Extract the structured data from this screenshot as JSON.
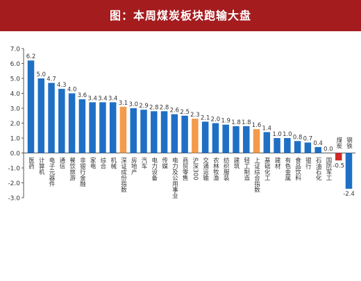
{
  "header": {
    "title": "图：本周煤炭板块跑输大盘"
  },
  "colors": {
    "title_bar": "#a51c1f",
    "bar_default": "#1f6fc5",
    "bar_highlight": "#f39a4b",
    "bar_negative_highlight": "#d02a27",
    "axis": "#555555",
    "text": "#333333"
  },
  "chart_data": {
    "type": "bar",
    "title": "图：本周煤炭板块跑输大盘",
    "xlabel": "",
    "ylabel": "",
    "ylim": [
      -3.0,
      7.0
    ],
    "yticks": [
      "7.0",
      "6.0",
      "5.0",
      "4.0",
      "3.0",
      "2.0",
      "1.0",
      "0.0",
      "-1.0",
      "-2.0",
      "-3.0"
    ],
    "grid": false,
    "categories": [
      "医药",
      "计算机",
      "电子元器件",
      "通信",
      "餐饮旅游",
      "非银行金融",
      "家电",
      "综合",
      "机械",
      "深证成份指数",
      "房地产",
      "汽车",
      "电力设备",
      "传媒",
      "电力及公用事业",
      "商贸零售",
      "沪深300",
      "交通运输",
      "农林牧渔",
      "纺织服装",
      "建筑",
      "轻工制造",
      "上证综合指数",
      "基础化工",
      "建材",
      "有色金属",
      "食品饮料",
      "银行",
      "石油石化",
      "国防军工",
      "煤炭",
      "钢铁"
    ],
    "values": [
      6.2,
      5.0,
      4.7,
      4.3,
      4.0,
      3.6,
      3.4,
      3.4,
      3.4,
      3.1,
      3.0,
      2.9,
      2.8,
      2.8,
      2.6,
      2.5,
      2.3,
      2.1,
      2.0,
      1.9,
      1.8,
      1.8,
      1.6,
      1.4,
      1.0,
      1.0,
      0.8,
      0.7,
      0.4,
      0.0,
      -0.5,
      -2.4
    ],
    "value_labels": [
      "6.2",
      "5.0",
      "4.7",
      "4.3",
      "4.0",
      "3.6",
      "3.4",
      "3.4",
      "3.4",
      "3.1",
      "3.0",
      "2.9",
      "2.8",
      "2.8",
      "2.6",
      "2.5",
      "2.3",
      "2.1",
      "2.0",
      "1.9",
      "1.8",
      "1.8",
      "1.6",
      "1.4",
      "1.0",
      "1.0",
      "0.8",
      "0.7",
      "0.4",
      "0.0",
      "-0.5",
      "-2.4"
    ],
    "highlight": [
      9,
      16,
      22
    ],
    "negative_highlight": [
      30
    ]
  }
}
